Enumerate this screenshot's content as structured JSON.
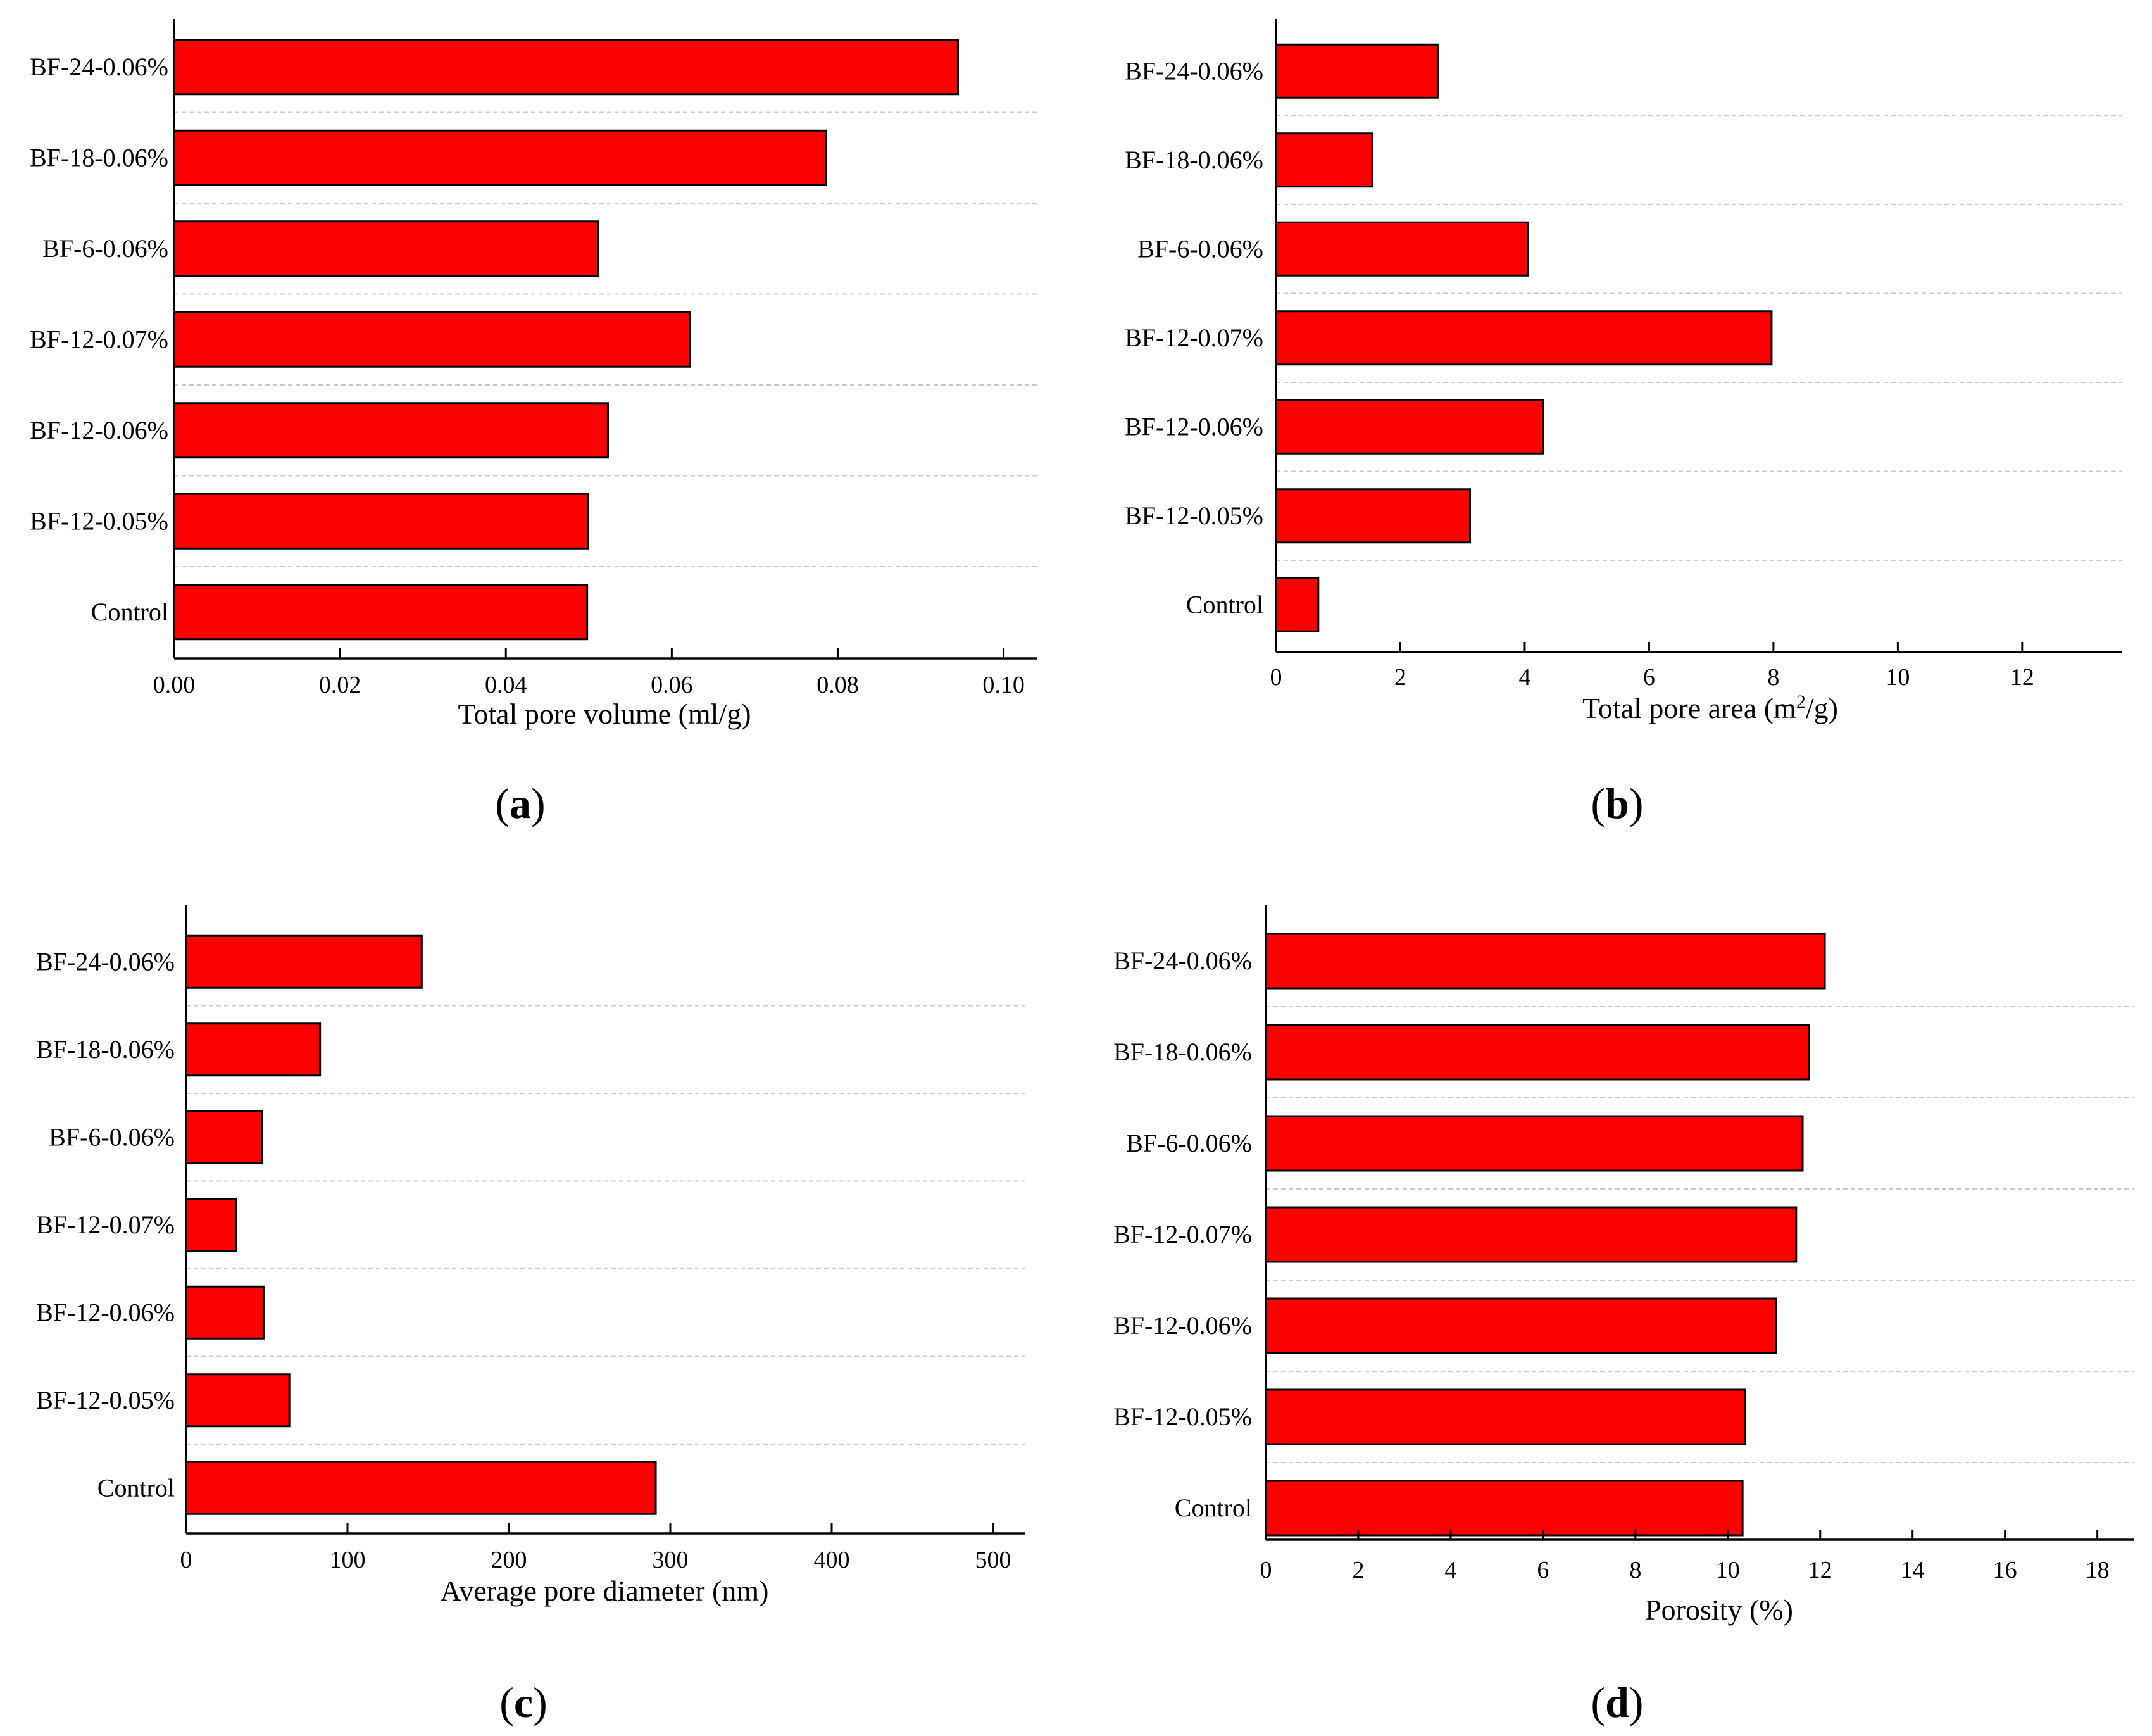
{
  "figure": {
    "bar_color": "#ff0000",
    "bar_edge_color": "#000000",
    "grid_color": "#c8c8c8"
  },
  "chart_data": [
    {
      "panel": "a",
      "type": "bar",
      "orientation": "horizontal",
      "categories": [
        "BF-24-0.06%",
        "BF-18-0.06%",
        "BF-6-0.06%",
        "BF-12-0.07%",
        "BF-12-0.06%",
        "BF-12-0.05%",
        "Control"
      ],
      "values": [
        0.0945,
        0.0786,
        0.0511,
        0.0622,
        0.0523,
        0.0499,
        0.0498
      ],
      "xlabel": "Total pore volume (ml/g)",
      "xlabel_parts": [
        "Total pore volume (ml/g)"
      ],
      "xlim": [
        0,
        0.104
      ],
      "xticks": [
        0,
        0.02,
        0.04,
        0.06,
        0.08,
        0.1
      ],
      "xtick_labels": [
        "0.00",
        "0.02",
        "0.04",
        "0.06",
        "0.08",
        "0.10"
      ],
      "grid": "horizontal-dashed",
      "panel_label": [
        "(",
        "a",
        ")"
      ]
    },
    {
      "panel": "b",
      "type": "bar",
      "orientation": "horizontal",
      "categories": [
        "BF-24-0.06%",
        "BF-18-0.06%",
        "BF-6-0.06%",
        "BF-12-0.07%",
        "BF-12-0.06%",
        "BF-12-0.05%",
        "Control"
      ],
      "values": [
        2.6,
        1.55,
        4.05,
        7.97,
        4.3,
        3.12,
        0.68
      ],
      "xlabel": "Total pore area (m2/g)",
      "xlabel_parts": [
        "Total pore area (m",
        "2",
        "/g)"
      ],
      "xlim": [
        0,
        13.6
      ],
      "xticks": [
        0,
        2,
        4,
        6,
        8,
        10,
        12
      ],
      "xtick_labels": [
        "0",
        "2",
        "4",
        "6",
        "8",
        "10",
        "12"
      ],
      "grid": "horizontal-dashed",
      "panel_label": [
        "(",
        "b",
        ")"
      ]
    },
    {
      "panel": "c",
      "type": "bar",
      "orientation": "horizontal",
      "categories": [
        "BF-24-0.06%",
        "BF-18-0.06%",
        "BF-6-0.06%",
        "BF-12-0.07%",
        "BF-12-0.06%",
        "BF-12-0.05%",
        "Control"
      ],
      "values": [
        146,
        83,
        47,
        31,
        48,
        64,
        291
      ],
      "xlabel": "Average pore diameter (nm)",
      "xlabel_parts": [
        "Average pore diameter (nm)"
      ],
      "xlim": [
        0,
        520
      ],
      "xticks": [
        0,
        100,
        200,
        300,
        400,
        500
      ],
      "xtick_labels": [
        "0",
        "100",
        "200",
        "300",
        "400",
        "500"
      ],
      "grid": "horizontal-dashed",
      "panel_label": [
        "(",
        "c",
        ")"
      ]
    },
    {
      "panel": "d",
      "type": "bar",
      "orientation": "horizontal",
      "categories": [
        "BF-24-0.06%",
        "BF-18-0.06%",
        "BF-6-0.06%",
        "BF-12-0.07%",
        "BF-12-0.06%",
        "BF-12-0.05%",
        "Control"
      ],
      "values": [
        12.1,
        11.75,
        11.62,
        11.48,
        11.05,
        10.38,
        10.32
      ],
      "xlabel": "Porosity (%)",
      "xlabel_parts": [
        "Porosity (%)"
      ],
      "xlim": [
        0,
        18.8
      ],
      "xticks": [
        0,
        2,
        4,
        6,
        8,
        10,
        12,
        14,
        16,
        18
      ],
      "xtick_labels": [
        "0",
        "2",
        "4",
        "6",
        "8",
        "10",
        "12",
        "14",
        "16",
        "18"
      ],
      "grid": "horizontal-dashed",
      "panel_label": [
        "(",
        "d",
        ")"
      ]
    }
  ]
}
